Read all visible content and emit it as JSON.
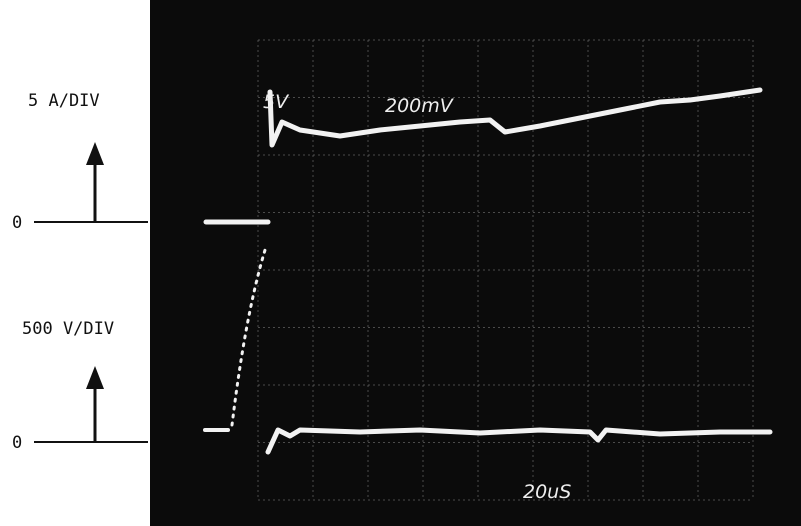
{
  "left_labels": {
    "current_scale": "5 A/DIV",
    "current_zero": "0",
    "voltage_scale": "500 V/DIV",
    "voltage_zero": "0"
  },
  "screen_labels": {
    "channel_1": "5V",
    "channel_2": "200mV",
    "timebase": "20uS"
  }
}
